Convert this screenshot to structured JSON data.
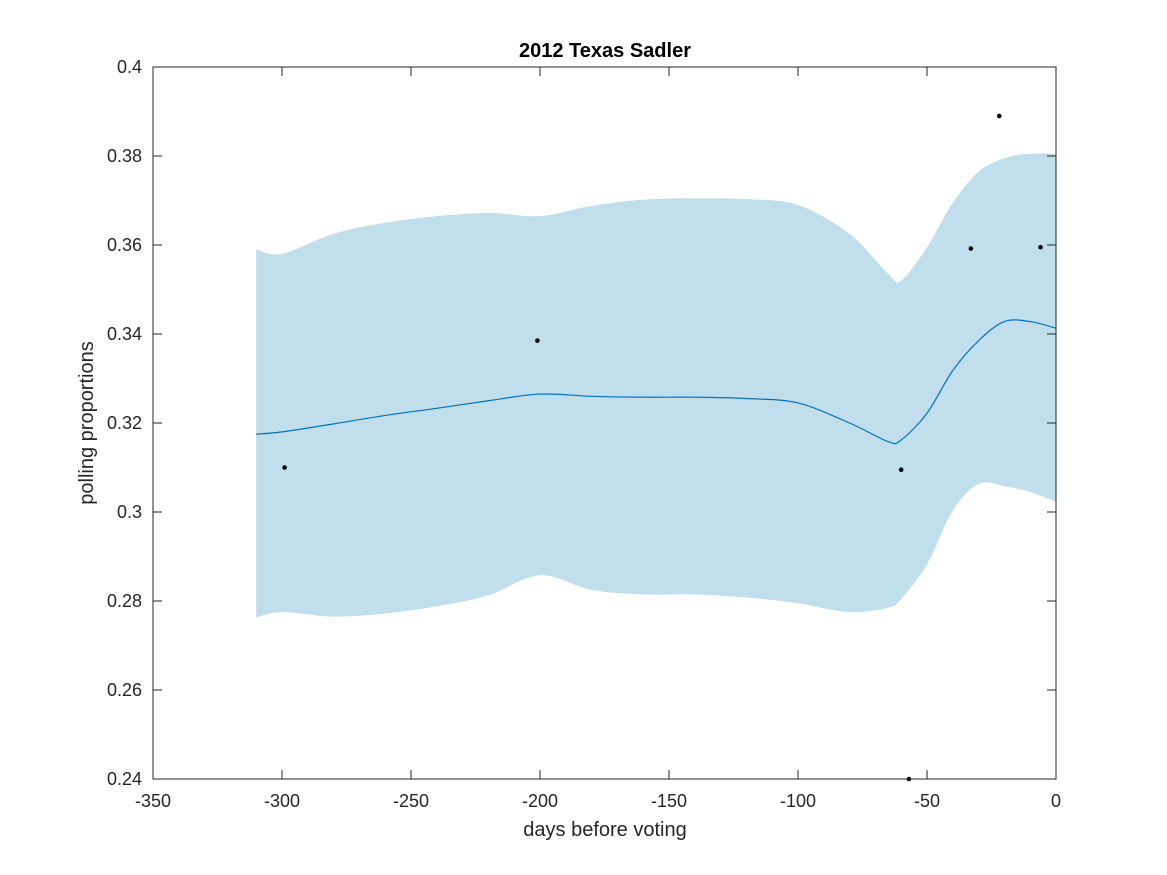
{
  "chart_data": {
    "type": "line",
    "title": "2012 Texas Sadler",
    "xlabel": "days before voting",
    "ylabel": "polling proportions",
    "xlim": [
      -350,
      0
    ],
    "ylim": [
      0.24,
      0.4
    ],
    "x_ticks": [
      -350,
      -300,
      -250,
      -200,
      -150,
      -100,
      -50,
      0
    ],
    "x_tick_labels": [
      "-350",
      "-300",
      "-250",
      "-200",
      "-150",
      "-100",
      "-50",
      "0"
    ],
    "y_ticks": [
      0.24,
      0.26,
      0.28,
      0.3,
      0.32,
      0.34,
      0.36,
      0.38,
      0.4
    ],
    "y_tick_labels": [
      "0.24",
      "0.26",
      "0.28",
      "0.3",
      "0.32",
      "0.34",
      "0.36",
      "0.38",
      "0.4"
    ],
    "grid": false,
    "colors": {
      "band": "#c0deeb",
      "line": "#0072bd",
      "points": "#000000",
      "axes": "#262626"
    },
    "series": [
      {
        "type": "line",
        "x": [
          -310,
          -300,
          -280,
          -260,
          -240,
          -220,
          -200,
          -180,
          -160,
          -140,
          -120,
          -100,
          -80,
          -65,
          -60,
          -50,
          -40,
          -30,
          -20,
          -10,
          0
        ],
        "values": [
          0.3175,
          0.318,
          0.3198,
          0.3217,
          0.3233,
          0.325,
          0.3265,
          0.326,
          0.3258,
          0.3258,
          0.3255,
          0.3245,
          0.32,
          0.3158,
          0.3162,
          0.3222,
          0.3318,
          0.3385,
          0.3428,
          0.3428,
          0.3413
        ]
      },
      {
        "type": "area",
        "x": [
          -310,
          -300,
          -280,
          -260,
          -240,
          -220,
          -200,
          -180,
          -160,
          -140,
          -120,
          -100,
          -80,
          -65,
          -60,
          -50,
          -40,
          -30,
          -20,
          -10,
          0
        ],
        "upper": [
          0.359,
          0.358,
          0.3625,
          0.365,
          0.3665,
          0.3672,
          0.3665,
          0.3688,
          0.3702,
          0.3705,
          0.3703,
          0.369,
          0.3625,
          0.3535,
          0.352,
          0.3595,
          0.3695,
          0.3765,
          0.3795,
          0.3805,
          0.3805
        ],
        "lower": [
          0.2763,
          0.2775,
          0.2765,
          0.2772,
          0.2788,
          0.2813,
          0.2858,
          0.2825,
          0.2815,
          0.2815,
          0.2808,
          0.2795,
          0.2775,
          0.2785,
          0.2805,
          0.2882,
          0.3003,
          0.3063,
          0.3058,
          0.3045,
          0.3023
        ]
      },
      {
        "type": "scatter",
        "x": [
          -299,
          -201,
          -60,
          -57,
          -33,
          -22,
          -6
        ],
        "values": [
          0.31,
          0.3385,
          0.3095,
          0.24,
          0.3592,
          0.389,
          0.3595
        ]
      }
    ]
  }
}
